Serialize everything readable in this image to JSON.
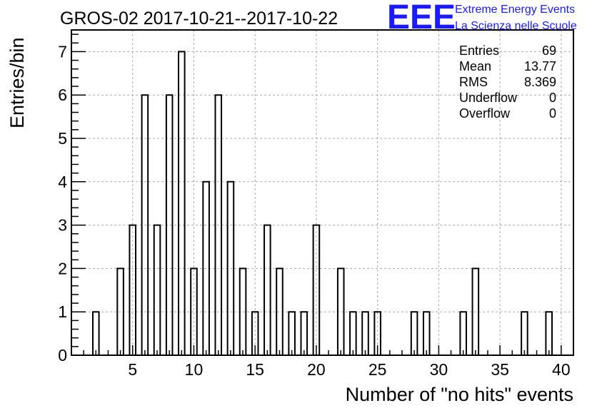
{
  "logo": {
    "mark": "EEE",
    "line1": "Extreme Energy Events",
    "line2": "La Scienza nelle Scuole",
    "color": "#1a1aff"
  },
  "stats": [
    {
      "label": "Entries",
      "value": "69"
    },
    {
      "label": "Mean",
      "value": "13.77"
    },
    {
      "label": "RMS",
      "value": "8.369"
    },
    {
      "label": "Underflow",
      "value": "0"
    },
    {
      "label": "Overflow",
      "value": "0"
    }
  ],
  "chart_data": {
    "type": "bar",
    "style": "step-histogram",
    "title": "GROS-02 2017-10-21--2017-10-22",
    "xlabel": "Number of \"no hits\" events",
    "ylabel": "Entries/bin",
    "xlim": [
      0,
      41
    ],
    "ylim": [
      0,
      7.5
    ],
    "xticks": [
      5,
      10,
      15,
      20,
      25,
      30,
      35,
      40
    ],
    "yticks": [
      0,
      1,
      2,
      3,
      4,
      5,
      6,
      7
    ],
    "bin_width": 0.5,
    "grid": true,
    "legend": "none",
    "bins": [
      {
        "x": 2,
        "y": 1
      },
      {
        "x": 4,
        "y": 2
      },
      {
        "x": 5,
        "y": 3
      },
      {
        "x": 6,
        "y": 6
      },
      {
        "x": 7,
        "y": 3
      },
      {
        "x": 8,
        "y": 6
      },
      {
        "x": 9,
        "y": 7
      },
      {
        "x": 10,
        "y": 2
      },
      {
        "x": 11,
        "y": 4
      },
      {
        "x": 12,
        "y": 6
      },
      {
        "x": 13,
        "y": 4
      },
      {
        "x": 14,
        "y": 2
      },
      {
        "x": 15,
        "y": 1
      },
      {
        "x": 16,
        "y": 3
      },
      {
        "x": 17,
        "y": 2
      },
      {
        "x": 18,
        "y": 1
      },
      {
        "x": 19,
        "y": 1
      },
      {
        "x": 20,
        "y": 3
      },
      {
        "x": 22,
        "y": 2
      },
      {
        "x": 23,
        "y": 1
      },
      {
        "x": 24,
        "y": 1
      },
      {
        "x": 25,
        "y": 1
      },
      {
        "x": 28,
        "y": 1
      },
      {
        "x": 29,
        "y": 1
      },
      {
        "x": 32,
        "y": 1
      },
      {
        "x": 33,
        "y": 2
      },
      {
        "x": 37,
        "y": 1
      },
      {
        "x": 39,
        "y": 1
      }
    ]
  }
}
